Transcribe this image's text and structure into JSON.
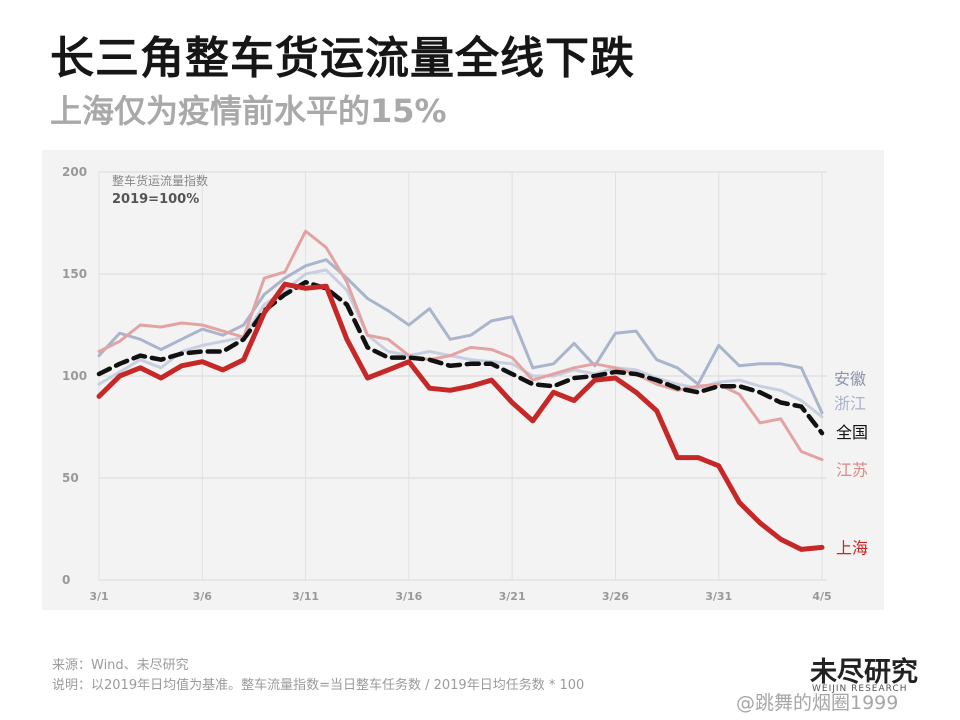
{
  "header": {
    "title": "长三角整车货运流量全线下跌",
    "subtitle": "上海仅为疫情前水平的15%"
  },
  "chart_data": {
    "type": "line",
    "title": "整车货运流量指数",
    "subtitle": "2019=100%",
    "xlabel": "",
    "ylabel": "",
    "ylim": [
      0,
      200
    ],
    "yticks": [
      "0",
      "50",
      "100",
      "150",
      "200"
    ],
    "grid": true,
    "legend": "end-of-line labels",
    "x": [
      "3/1",
      "3/2",
      "3/3",
      "3/4",
      "3/5",
      "3/6",
      "3/7",
      "3/8",
      "3/9",
      "3/10",
      "3/11",
      "3/12",
      "3/13",
      "3/14",
      "3/15",
      "3/16",
      "3/17",
      "3/18",
      "3/19",
      "3/20",
      "3/21",
      "3/22",
      "3/23",
      "3/24",
      "3/25",
      "3/26",
      "3/27",
      "3/28",
      "3/29",
      "3/30",
      "3/31",
      "4/1",
      "4/2",
      "4/3",
      "4/4",
      "4/5"
    ],
    "xticks": [
      "3/1",
      "3/6",
      "3/11",
      "3/16",
      "3/21",
      "3/26",
      "3/31",
      "4/5"
    ],
    "series": [
      {
        "name": "安徽",
        "color": "#aab4cc",
        "values": [
          110,
          121,
          118,
          113,
          118,
          123,
          120,
          125,
          140,
          148,
          154,
          157,
          148,
          138,
          132,
          125,
          133,
          118,
          120,
          127,
          129,
          104,
          106,
          116,
          105,
          121,
          122,
          108,
          104,
          96,
          115,
          105,
          106,
          106,
          104,
          82
        ]
      },
      {
        "name": "浙江",
        "color": "#c7cfe0",
        "values": [
          96,
          102,
          108,
          104,
          112,
          115,
          117,
          119,
          135,
          142,
          150,
          152,
          142,
          120,
          112,
          110,
          112,
          110,
          108,
          107,
          106,
          100,
          100,
          103,
          101,
          104,
          103,
          99,
          96,
          94,
          97,
          98,
          95,
          93,
          88,
          80
        ]
      },
      {
        "name": "江苏",
        "color": "#e3a3a3",
        "values": [
          112,
          117,
          125,
          124,
          126,
          125,
          122,
          119,
          148,
          151,
          171,
          163,
          146,
          120,
          118,
          110,
          108,
          110,
          114,
          113,
          109,
          98,
          101,
          104,
          106,
          104,
          101,
          96,
          93,
          95,
          96,
          91,
          77,
          79,
          63,
          59
        ]
      },
      {
        "name": "全国",
        "color": "#111111",
        "values": [
          101,
          106,
          110,
          108,
          111,
          112,
          112,
          118,
          132,
          140,
          146,
          143,
          135,
          114,
          109,
          109,
          108,
          105,
          106,
          106,
          101,
          96,
          95,
          99,
          100,
          102,
          101,
          98,
          94,
          92,
          95,
          95,
          92,
          87,
          85,
          72
        ]
      },
      {
        "name": "上海",
        "color": "#c62828",
        "values": [
          90,
          100,
          104,
          99,
          105,
          107,
          103,
          108,
          131,
          145,
          143,
          144,
          118,
          99,
          103,
          107,
          94,
          93,
          95,
          98,
          87,
          78,
          92,
          88,
          98,
          99,
          92,
          83,
          60,
          60,
          56,
          38,
          28,
          20,
          15,
          16
        ]
      }
    ]
  },
  "footer": {
    "source": "来源：Wind、未尽研究",
    "note": "说明：以2019年日均值为基准。整车流量指数=当日整车任务数 / 2019年日均任务数 * 100"
  },
  "brand": {
    "name": "未尽研究",
    "sub": "WEIJIN RESEARCH"
  },
  "watermark": "@跳舞的烟圈1999"
}
